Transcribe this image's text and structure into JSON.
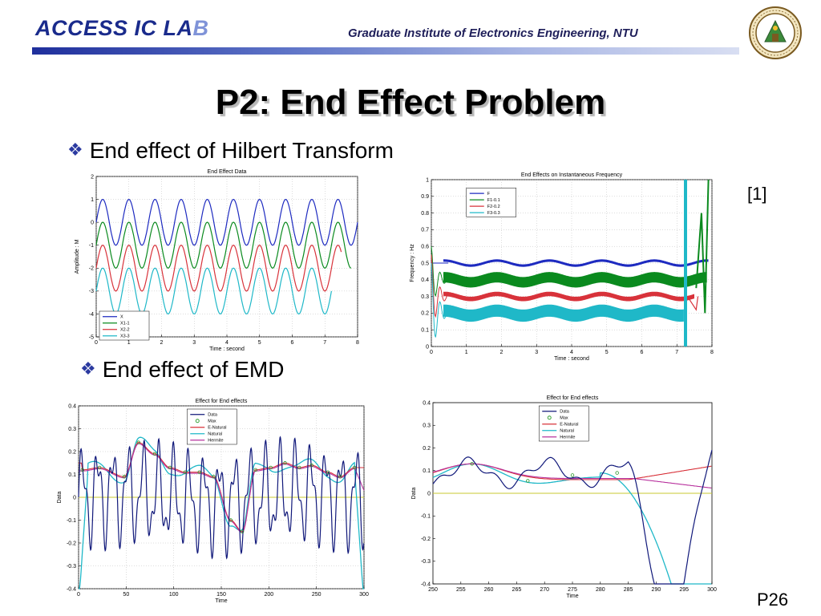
{
  "header": {
    "logo_text_main": "ACCESS IC LA",
    "logo_text_fade": "B",
    "institute": "Graduate Institute of Electronics Engineering, NTU"
  },
  "slide": {
    "title": "P2: End Effect Problem",
    "bullet1": "End effect of Hilbert Transform",
    "bullet2": "End effect of EMD",
    "reference": "[1]",
    "page_number": "P26"
  },
  "colors": {
    "accent": "#1a2b8c",
    "diamond": "#2b3aa0",
    "blue": "#1d2ac0",
    "green": "#0a8a1e",
    "red": "#d8323a",
    "cyan": "#1fb8c8",
    "darkblue": "#10187a",
    "magenta": "#b8329e",
    "yellow": "#c8c832",
    "marker": "#2a9a2a"
  },
  "chart_data": [
    {
      "type": "line",
      "title": "End Effect Data",
      "xlabel": "Time : second",
      "ylabel": "Amplitude : M",
      "xlim": [
        0,
        8
      ],
      "ylim": [
        -5,
        2
      ],
      "xticks": [
        0,
        1,
        2,
        3,
        4,
        5,
        6,
        7,
        8
      ],
      "yticks": [
        -5,
        -4,
        -3,
        -2,
        -1,
        0,
        1,
        2
      ],
      "grid": true,
      "legend": "bottom-left",
      "series": [
        {
          "name": "X",
          "color_key": "blue",
          "func": "sine",
          "offset": 0,
          "amp": 1,
          "period": 0.8,
          "xmax": 8.0
        },
        {
          "name": "X1-1",
          "color_key": "green",
          "func": "sine",
          "offset": -1,
          "amp": 1,
          "period": 0.8,
          "xmax": 7.8
        },
        {
          "name": "X2-2",
          "color_key": "red",
          "func": "sine",
          "offset": -2,
          "amp": 1,
          "period": 0.8,
          "xmax": 7.5
        },
        {
          "name": "X3-3",
          "color_key": "cyan",
          "func": "sine",
          "offset": -3,
          "amp": 1,
          "period": 0.8,
          "xmax": 7.2
        }
      ]
    },
    {
      "type": "line",
      "title": "End Effects on Instantaneous Frequency",
      "xlabel": "Time : second",
      "ylabel": "Frequency : Hz",
      "xlim": [
        0,
        8
      ],
      "ylim": [
        0,
        1
      ],
      "xticks": [
        0,
        1,
        2,
        3,
        4,
        5,
        6,
        7,
        8
      ],
      "yticks": [
        0,
        0.1,
        0.2,
        0.3,
        0.4,
        0.5,
        0.6,
        0.7,
        0.8,
        0.9,
        1
      ],
      "grid": true,
      "legend": "top-left",
      "series": [
        {
          "name": "F",
          "color_key": "blue",
          "center": 0.5,
          "band": 0.006,
          "xmax": 8.0
        },
        {
          "name": "F1-0.1",
          "color_key": "green",
          "center": 0.4,
          "band": 0.03,
          "xmax": 7.95
        },
        {
          "name": "F2-0.2",
          "color_key": "red",
          "center": 0.3,
          "band": 0.012,
          "xmax": 7.6
        },
        {
          "name": "F3-0.3",
          "color_key": "cyan",
          "center": 0.2,
          "band": 0.035,
          "xmax": 7.3
        }
      ]
    },
    {
      "type": "line",
      "title": "Effect for End effects",
      "xlabel": "Time",
      "ylabel": "Data",
      "xlim": [
        0,
        300
      ],
      "ylim": [
        -0.4,
        0.4
      ],
      "xticks": [
        0,
        50,
        100,
        150,
        200,
        250,
        300
      ],
      "yticks": [
        -0.4,
        -0.3,
        -0.2,
        -0.1,
        0,
        0.1,
        0.2,
        0.3,
        0.4
      ],
      "grid": true,
      "legend": "top-center",
      "series": [
        {
          "name": "Data",
          "color_key": "darkblue"
        },
        {
          "name": "Max",
          "color_key": "marker",
          "marker": "circle"
        },
        {
          "name": "E-Natural",
          "color_key": "red"
        },
        {
          "name": "Natural",
          "color_key": "cyan"
        },
        {
          "name": "Hermite",
          "color_key": "magenta"
        }
      ],
      "max_points": [
        [
          4,
          0.12
        ],
        [
          22,
          0.13
        ],
        [
          48,
          0.09
        ],
        [
          63,
          0.24
        ],
        [
          80,
          0.19
        ],
        [
          96,
          0.13
        ],
        [
          112,
          0.11
        ],
        [
          127,
          0.11
        ],
        [
          142,
          0.09
        ],
        [
          160,
          -0.1
        ],
        [
          172,
          -0.15
        ],
        [
          186,
          0.12
        ],
        [
          202,
          0.13
        ],
        [
          217,
          0.15
        ],
        [
          232,
          0.13
        ],
        [
          245,
          0.14
        ],
        [
          262,
          0.11
        ],
        [
          275,
          0.09
        ],
        [
          290,
          0.13
        ]
      ]
    },
    {
      "type": "line",
      "title": "Effect for End effects",
      "xlabel": "Time",
      "ylabel": "Data",
      "xlim": [
        250,
        300
      ],
      "ylim": [
        -0.4,
        0.4
      ],
      "xticks": [
        250,
        255,
        260,
        265,
        270,
        275,
        280,
        285,
        290,
        295,
        300
      ],
      "yticks": [
        -0.4,
        -0.3,
        -0.2,
        -0.1,
        0,
        0.1,
        0.2,
        0.3,
        0.4
      ],
      "grid": false,
      "legend": "top-center",
      "series": [
        {
          "name": "Data",
          "color_key": "darkblue"
        },
        {
          "name": "Max",
          "color_key": "marker",
          "marker": "circle"
        },
        {
          "name": "E-Natural",
          "color_key": "red"
        },
        {
          "name": "Natural",
          "color_key": "cyan"
        },
        {
          "name": "Hermite",
          "color_key": "magenta"
        }
      ],
      "max_points": [
        [
          257,
          0.13
        ],
        [
          267,
          0.055
        ],
        [
          275,
          0.08
        ],
        [
          283,
          0.09
        ]
      ]
    }
  ]
}
